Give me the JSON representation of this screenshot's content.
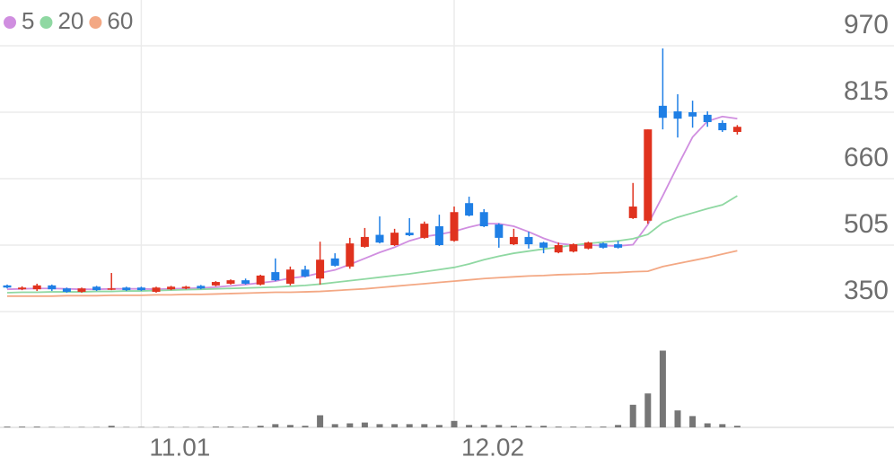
{
  "chart_data": {
    "type": "candlestick",
    "categories": [
      null,
      null,
      null,
      null,
      null,
      null,
      null,
      null,
      null,
      "11.01",
      null,
      null,
      null,
      null,
      null,
      null,
      null,
      null,
      null,
      null,
      null,
      null,
      null,
      null,
      null,
      null,
      null,
      null,
      null,
      null,
      "12.02",
      null,
      null,
      null,
      null,
      null,
      null,
      null,
      null,
      null,
      null,
      null,
      null,
      null,
      null,
      null,
      null,
      null,
      null,
      null
    ],
    "open": [
      411,
      402,
      402,
      411,
      404,
      396,
      408,
      402,
      406,
      406,
      396,
      402,
      404,
      410,
      411,
      415,
      423,
      413,
      442,
      415,
      448,
      427,
      474,
      455,
      501,
      529,
      505,
      534,
      522,
      549,
      515,
      603,
      582,
      553,
      507,
      524,
      511,
      488,
      490,
      497,
      509,
      507,
      568,
      562,
      830,
      817,
      815,
      809,
      790,
      769
    ],
    "high": [
      413,
      409,
      415,
      413,
      406,
      406,
      410,
      440,
      408,
      408,
      408,
      410,
      410,
      412,
      421,
      425,
      427,
      436,
      474,
      455,
      457,
      513,
      486,
      522,
      545,
      572,
      543,
      568,
      560,
      576,
      595,
      618,
      589,
      556,
      543,
      536,
      513,
      511,
      509,
      513,
      511,
      515,
      650,
      775,
      964,
      857,
      842,
      817,
      796,
      785
    ],
    "low": [
      404,
      400,
      398,
      398,
      394,
      394,
      398,
      400,
      398,
      398,
      394,
      400,
      402,
      402,
      409,
      413,
      413,
      411,
      421,
      411,
      430,
      413,
      455,
      450,
      499,
      509,
      503,
      526,
      520,
      503,
      513,
      572,
      547,
      499,
      505,
      497,
      486,
      486,
      488,
      495,
      497,
      497,
      566,
      555,
      775,
      756,
      779,
      781,
      769,
      763
    ],
    "close": [
      406,
      406,
      411,
      402,
      396,
      404,
      400,
      404,
      400,
      400,
      406,
      408,
      408,
      404,
      419,
      423,
      415,
      434,
      423,
      448,
      432,
      471,
      457,
      509,
      524,
      511,
      534,
      528,
      555,
      505,
      582,
      574,
      549,
      522,
      524,
      507,
      499,
      505,
      507,
      511,
      499,
      499,
      595,
      775,
      802,
      800,
      805,
      792,
      773,
      781
    ],
    "up_color": "#e0321e",
    "down_color": "#1f7fe5",
    "series": [
      {
        "name": "5",
        "color": "#d08ee0",
        "values": [
          402,
          403,
          404,
          404,
          403,
          402,
          402,
          403,
          403,
          403,
          402,
          403,
          404,
          405,
          407,
          410,
          413,
          417,
          421,
          428,
          432,
          440,
          447,
          460,
          474,
          488,
          500,
          515,
          525,
          530,
          537,
          547,
          555,
          555,
          549,
          536,
          521,
          509,
          505,
          505,
          504,
          503,
          506,
          553,
          620,
          690,
          757,
          794,
          805,
          800
        ]
      },
      {
        "name": "20",
        "color": "#8fd8a2",
        "values": [
          394,
          395,
          395,
          396,
          396,
          396,
          397,
          397,
          398,
          398,
          399,
          400,
          401,
          402,
          403,
          404,
          405,
          406,
          407,
          409,
          411,
          414,
          418,
          422,
          426,
          430,
          434,
          438,
          443,
          448,
          453,
          461,
          471,
          479,
          486,
          491,
          496,
          500,
          505,
          509,
          512,
          515,
          520,
          530,
          557,
          570,
          580,
          590,
          599,
          620
        ]
      },
      {
        "name": "60",
        "color": "#f3a884",
        "values": [
          386,
          386,
          386,
          386,
          387,
          387,
          387,
          388,
          388,
          388,
          389,
          389,
          390,
          390,
          391,
          392,
          393,
          394,
          395,
          395,
          396,
          397,
          399,
          401,
          403,
          406,
          409,
          412,
          415,
          418,
          421,
          424,
          427,
          429,
          431,
          433,
          434,
          436,
          437,
          438,
          440,
          441,
          443,
          444,
          455,
          462,
          469,
          476,
          484,
          492
        ]
      }
    ],
    "ylim": [
      350,
      970
    ],
    "yticks": [
      350,
      505,
      660,
      815,
      970
    ],
    "grid": true,
    "volume": {
      "color": "#767676",
      "ylim": [
        0,
        100
      ],
      "values": [
        1,
        1,
        1,
        0.5,
        0.5,
        0.5,
        0.5,
        2,
        0.5,
        0.5,
        0.5,
        0.5,
        0.5,
        0.5,
        1,
        1,
        1,
        2,
        4,
        3,
        2,
        15,
        4,
        5,
        6,
        4,
        4,
        4,
        4,
        3,
        8,
        3,
        3,
        3,
        2,
        2,
        2,
        1,
        1,
        1,
        1,
        3,
        28,
        42,
        95,
        21,
        14,
        5,
        4,
        2
      ]
    }
  }
}
